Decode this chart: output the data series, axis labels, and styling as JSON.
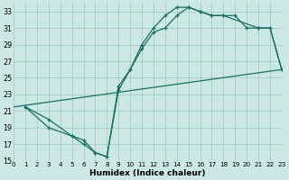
{
  "xlabel": "Humidex (Indice chaleur)",
  "bg_color": "#cce8e5",
  "grid_color": "#aad0cc",
  "line_color": "#1a6e64",
  "xlim": [
    0,
    23
  ],
  "ylim": [
    15,
    34
  ],
  "yticks": [
    15,
    17,
    19,
    21,
    23,
    25,
    27,
    29,
    31,
    33
  ],
  "xticks": [
    0,
    1,
    2,
    3,
    4,
    5,
    6,
    7,
    8,
    9,
    10,
    11,
    12,
    13,
    14,
    15,
    16,
    17,
    18,
    19,
    20,
    21,
    22,
    23
  ],
  "curve1_x": [
    1,
    3,
    5,
    6,
    7,
    8,
    9,
    10,
    11,
    12,
    13,
    14,
    15,
    16,
    17,
    18,
    19,
    20,
    21,
    22,
    23
  ],
  "curve1_y": [
    21.5,
    19,
    18,
    17.5,
    16,
    15.5,
    23.5,
    26,
    28.5,
    30.5,
    31,
    32.5,
    33.5,
    33,
    32.5,
    32.5,
    32.5,
    31,
    31,
    31,
    26
  ],
  "curve2_x": [
    1,
    3,
    5,
    6,
    7,
    8,
    9,
    10,
    11,
    12,
    13,
    14,
    15,
    16,
    17,
    18,
    21,
    22,
    23
  ],
  "curve2_y": [
    21.5,
    20,
    18,
    17,
    16,
    15.5,
    24,
    26,
    29,
    31,
    32.5,
    33.5,
    33.5,
    33,
    32.5,
    32.5,
    31,
    31,
    26
  ],
  "line_x": [
    0,
    23
  ],
  "line_y": [
    21.5,
    26
  ]
}
